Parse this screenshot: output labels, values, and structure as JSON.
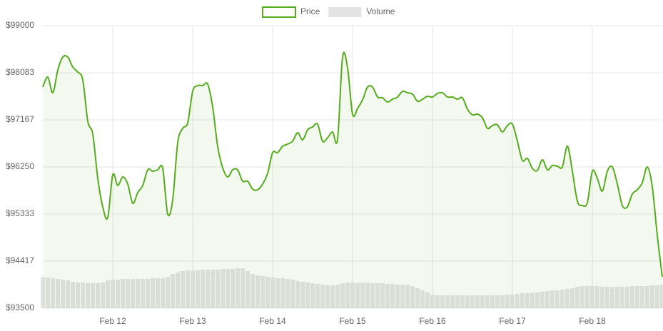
{
  "chart_data": {
    "type": "line",
    "x": [
      11.125,
      11.1875,
      11.25,
      11.3125,
      11.375,
      11.4375,
      11.5,
      11.5625,
      11.625,
      11.6875,
      11.75,
      11.8125,
      11.875,
      11.9375,
      12,
      12.0625,
      12.125,
      12.1875,
      12.25,
      12.3125,
      12.375,
      12.4375,
      12.5,
      12.5625,
      12.625,
      12.6875,
      12.75,
      12.8125,
      12.875,
      12.9375,
      13,
      13.0625,
      13.125,
      13.1875,
      13.25,
      13.3125,
      13.375,
      13.4375,
      13.5,
      13.5625,
      13.625,
      13.6875,
      13.75,
      13.8125,
      13.875,
      13.9375,
      14,
      14.0625,
      14.125,
      14.1875,
      14.25,
      14.3125,
      14.375,
      14.4375,
      14.5,
      14.5625,
      14.625,
      14.6875,
      14.75,
      14.8125,
      14.875,
      14.9375,
      15,
      15.0625,
      15.125,
      15.1875,
      15.25,
      15.3125,
      15.375,
      15.4375,
      15.5,
      15.5625,
      15.625,
      15.6875,
      15.75,
      15.8125,
      15.875,
      15.9375,
      16,
      16.0625,
      16.125,
      16.1875,
      16.25,
      16.3125,
      16.375,
      16.4375,
      16.5,
      16.5625,
      16.625,
      16.6875,
      16.75,
      16.8125,
      16.875,
      16.9375,
      17,
      17.0625,
      17.125,
      17.1875,
      17.25,
      17.3125,
      17.375,
      17.4375,
      17.5,
      17.5625,
      17.625,
      17.6875,
      17.75,
      17.8125,
      17.875,
      17.9375,
      18,
      18.0625,
      18.125,
      18.1875,
      18.25,
      18.3125,
      18.375,
      18.4375,
      18.5,
      18.5625,
      18.625,
      18.6875,
      18.75,
      18.8125,
      18.875
    ],
    "series": [
      {
        "name": "Price",
        "color": "#56ab1e",
        "values": [
          97806,
          98000,
          97694,
          98139,
          98389,
          98389,
          98194,
          98097,
          97944,
          97139,
          96889,
          96028,
          95472,
          95264,
          96097,
          95889,
          96056,
          95917,
          95542,
          95750,
          95889,
          96194,
          96167,
          96194,
          96222,
          95333,
          95611,
          96722,
          97000,
          97111,
          97722,
          97833,
          97833,
          97861,
          97417,
          96653,
          96236,
          96056,
          96194,
          96194,
          95972,
          95972,
          95819,
          95806,
          95917,
          96125,
          96528,
          96528,
          96653,
          96694,
          96750,
          96917,
          96778,
          96972,
          97028,
          97083,
          96750,
          96819,
          96931,
          96792,
          98389,
          98181,
          97278,
          97389,
          97556,
          97806,
          97806,
          97611,
          97597,
          97514,
          97569,
          97611,
          97722,
          97694,
          97667,
          97528,
          97569,
          97625,
          97611,
          97681,
          97694,
          97611,
          97611,
          97569,
          97597,
          97375,
          97264,
          97278,
          97208,
          97000,
          97056,
          97069,
          96931,
          97056,
          97083,
          96750,
          96375,
          96417,
          96222,
          96181,
          96389,
          96194,
          96278,
          96264,
          96250,
          96653,
          96167,
          95583,
          95500,
          95556,
          96167,
          96028,
          95778,
          96167,
          96250,
          95917,
          95500,
          95472,
          95722,
          95806,
          95944,
          96250,
          95861,
          94917,
          94111
        ]
      },
      {
        "name": "Volume",
        "color": "#e3e3e3",
        "type": "bar",
        "axis": "y2",
        "values": [
          44,
          43,
          42,
          41,
          40,
          39,
          37,
          36,
          36,
          35,
          35,
          35,
          36,
          39,
          40,
          40,
          41,
          41,
          41,
          41,
          41,
          41,
          42,
          42,
          42,
          44,
          48,
          50,
          52,
          53,
          53,
          53,
          54,
          54,
          54,
          54,
          55,
          55,
          55,
          56,
          56,
          52,
          48,
          46,
          45,
          44,
          43,
          42,
          42,
          41,
          40,
          38,
          37,
          36,
          35,
          34,
          33,
          32,
          32,
          33,
          35,
          36,
          36,
          36,
          36,
          36,
          35,
          35,
          35,
          34,
          34,
          33,
          33,
          33,
          31,
          28,
          25,
          22,
          19,
          18,
          18,
          18,
          18,
          18,
          18,
          18,
          18,
          18,
          18,
          18,
          18,
          18,
          18,
          19,
          19,
          20,
          21,
          21,
          22,
          22,
          23,
          24,
          25,
          25,
          26,
          27,
          28,
          30,
          31,
          31,
          31,
          31,
          30,
          30,
          30,
          30,
          30,
          30,
          31,
          31,
          31,
          31,
          32,
          32,
          33
        ]
      }
    ],
    "xlim": [
      11.125,
      18.875
    ],
    "xticks": [
      {
        "value": 12,
        "label": "Feb 12"
      },
      {
        "value": 13,
        "label": "Feb 13"
      },
      {
        "value": 14,
        "label": "Feb 14"
      },
      {
        "value": 15,
        "label": "Feb 15"
      },
      {
        "value": 16,
        "label": "Feb 16"
      },
      {
        "value": 17,
        "label": "Feb 17"
      },
      {
        "value": 18,
        "label": "Feb 18"
      }
    ],
    "ylim": [
      93500,
      99000
    ],
    "yticks": [
      {
        "value": 93500,
        "label": "$93500"
      },
      {
        "value": 94416.67,
        "label": "$94417"
      },
      {
        "value": 95333.33,
        "label": "$95333"
      },
      {
        "value": 96250,
        "label": "$96250"
      },
      {
        "value": 97166.67,
        "label": "$97167"
      },
      {
        "value": 98083.33,
        "label": "$98083"
      },
      {
        "value": 99000,
        "label": "$99000"
      }
    ],
    "y2lim": [
      0,
      396
    ],
    "grid": true,
    "legend": "top"
  }
}
